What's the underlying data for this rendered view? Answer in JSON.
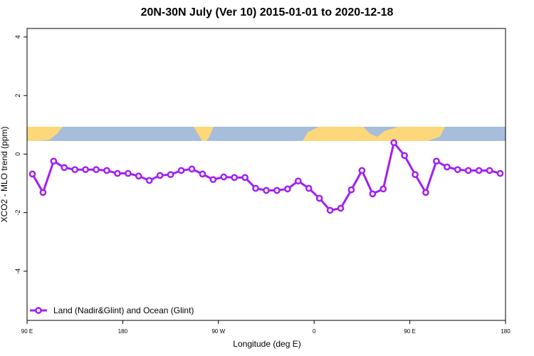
{
  "chart_data": {
    "type": "line",
    "title": "20N-30N July (Ver 10)   2015-01-01 to 2020-12-18",
    "x_label": "Longitude (deg E)",
    "y_label": "XCO2 - MLO trend (ppm)",
    "x": [
      95,
      105,
      115,
      125,
      135,
      145,
      155,
      165,
      175,
      185,
      195,
      205,
      215,
      225,
      235,
      245,
      255,
      265,
      275,
      285,
      295,
      305,
      315,
      325,
      335,
      345,
      355,
      365,
      375,
      385,
      395,
      405,
      415,
      425,
      435,
      445,
      455,
      465,
      475,
      485,
      495,
      505,
      515,
      525,
      535
    ],
    "series": [
      {
        "name": "Land (Nadir&Glint) and Ocean (Glint)",
        "color": "#a020f0",
        "values": [
          -0.68,
          -1.31,
          -0.24,
          -0.46,
          -0.53,
          -0.53,
          -0.53,
          -0.56,
          -0.66,
          -0.66,
          -0.75,
          -0.9,
          -0.73,
          -0.7,
          -0.56,
          -0.51,
          -0.68,
          -0.87,
          -0.78,
          -0.8,
          -0.8,
          -1.17,
          -1.24,
          -1.24,
          -1.19,
          -0.92,
          -1.17,
          -1.51,
          -1.92,
          -1.85,
          -1.22,
          -0.56,
          -1.36,
          -1.19,
          0.39,
          -0.05,
          -0.7,
          -1.31,
          -0.24,
          -0.44,
          -0.53,
          -0.56,
          -0.56,
          -0.56,
          -0.66
        ]
      }
    ],
    "xlim": [
      90,
      540
    ],
    "xticks": [
      {
        "value": 90,
        "label": "90 E"
      },
      {
        "value": 180,
        "label": "180"
      },
      {
        "value": 270,
        "label": "90 W"
      },
      {
        "value": 360,
        "label": "0"
      },
      {
        "value": 450,
        "label": "90 E"
      },
      {
        "value": 540,
        "label": "180"
      }
    ],
    "ylim": [
      -5.68,
      4.29
    ],
    "yticks": [
      -4,
      -2,
      0,
      2,
      4
    ],
    "legend": "bottomleft"
  }
}
